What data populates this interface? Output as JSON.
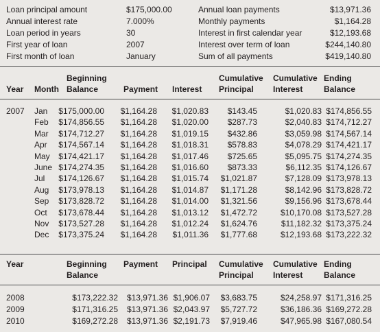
{
  "summary": {
    "left": [
      {
        "label": "Loan principal amount",
        "value": "$175,000.00"
      },
      {
        "label": "Annual interest rate",
        "value": "7.000%"
      },
      {
        "label": "Loan period in years",
        "value": "30"
      },
      {
        "label": "First year of loan",
        "value": "2007"
      },
      {
        "label": "First month of loan",
        "value": "January"
      }
    ],
    "right": [
      {
        "label": "Annual loan payments",
        "value": "$13,971.36"
      },
      {
        "label": "Monthly payments",
        "value": "$1,164.28"
      },
      {
        "label": "Interest in first calendar year",
        "value": "$12,193.68"
      },
      {
        "label": "Interest over term of loan",
        "value": "$244,140.80"
      },
      {
        "label": "Sum of all payments",
        "value": "$419,140.80"
      }
    ]
  },
  "monthly": {
    "headers": {
      "year": "Year",
      "month": "Month",
      "beginning_1": "Beginning",
      "beginning_2": "Balance",
      "payment": "Payment",
      "interest": "Interest",
      "cum_principal_1": "Cumulative",
      "cum_principal_2": "Principal",
      "cum_interest_1": "Cumulative",
      "cum_interest_2": "Interest",
      "ending_1": "Ending",
      "ending_2": "Balance"
    },
    "year": "2007",
    "rows": [
      [
        "Jan",
        "$175,000.00",
        "$1,164.28",
        "$1,020.83",
        "$143.45",
        "$1,020.83",
        "$174,856.55"
      ],
      [
        "Feb",
        "$174,856.55",
        "$1,164.28",
        "$1,020.00",
        "$287.73",
        "$2,040.83",
        "$174,712.27"
      ],
      [
        "Mar",
        "$174,712.27",
        "$1,164.28",
        "$1,019.15",
        "$432.86",
        "$3,059.98",
        "$174,567.14"
      ],
      [
        "Apr",
        "$174,567.14",
        "$1,164.28",
        "$1,018.31",
        "$578.83",
        "$4,078.29",
        "$174,421.17"
      ],
      [
        "May",
        "$174,421.17",
        "$1,164.28",
        "$1,017.46",
        "$725.65",
        "$5,095.75",
        "$174,274.35"
      ],
      [
        "June",
        "$174,274.35",
        "$1,164.28",
        "$1,016.60",
        "$873.33",
        "$6,112.35",
        "$174,126.67"
      ],
      [
        "Jul",
        "$174,126.67",
        "$1,164.28",
        "$1,015.74",
        "$1,021.87",
        "$7,128.09",
        "$173,978.13"
      ],
      [
        "Aug",
        "$173,978.13",
        "$1,164.28",
        "$1,014.87",
        "$1,171.28",
        "$8,142.96",
        "$173,828.72"
      ],
      [
        "Sep",
        "$173,828.72",
        "$1,164.28",
        "$1,014.00",
        "$1,321.56",
        "$9,156.96",
        "$173,678.44"
      ],
      [
        "Oct",
        "$173,678.44",
        "$1,164.28",
        "$1,013.12",
        "$1,472.72",
        "$10,170.08",
        "$173,527.28"
      ],
      [
        "Nov",
        "$173,527.28",
        "$1,164.28",
        "$1,012.24",
        "$1,624.76",
        "$11,182.32",
        "$173,375.24"
      ],
      [
        "Dec",
        "$173,375.24",
        "$1,164.28",
        "$1,011.36",
        "$1,777.68",
        "$12,193.68",
        "$173,222.32"
      ]
    ]
  },
  "annual": {
    "headers": {
      "year": "Year",
      "beginning_1": "Beginning",
      "beginning_2": "Balance",
      "payment": "Payment",
      "principal": "Principal",
      "cum_principal_1": "Cumulative",
      "cum_principal_2": "Principal",
      "cum_interest_1": "Cumulative",
      "cum_interest_2": "Interest",
      "ending_1": "Ending",
      "ending_2": "Balance"
    },
    "rows": [
      [
        "2008",
        "$173,222.32",
        "$13,971.36",
        "$1,906.07",
        "$3,683.75",
        "$24,258.97",
        "$171,316.25"
      ],
      [
        "2009",
        "$171,316.25",
        "$13,971.36",
        "$2,043.97",
        "$5,727.72",
        "$36,186.36",
        "$169,272.28"
      ],
      [
        "2010",
        "$169,272.28",
        "$13,971.36",
        "$2,191.73",
        "$7,919.46",
        "$47,965.98",
        "$167,080.54"
      ]
    ]
  }
}
